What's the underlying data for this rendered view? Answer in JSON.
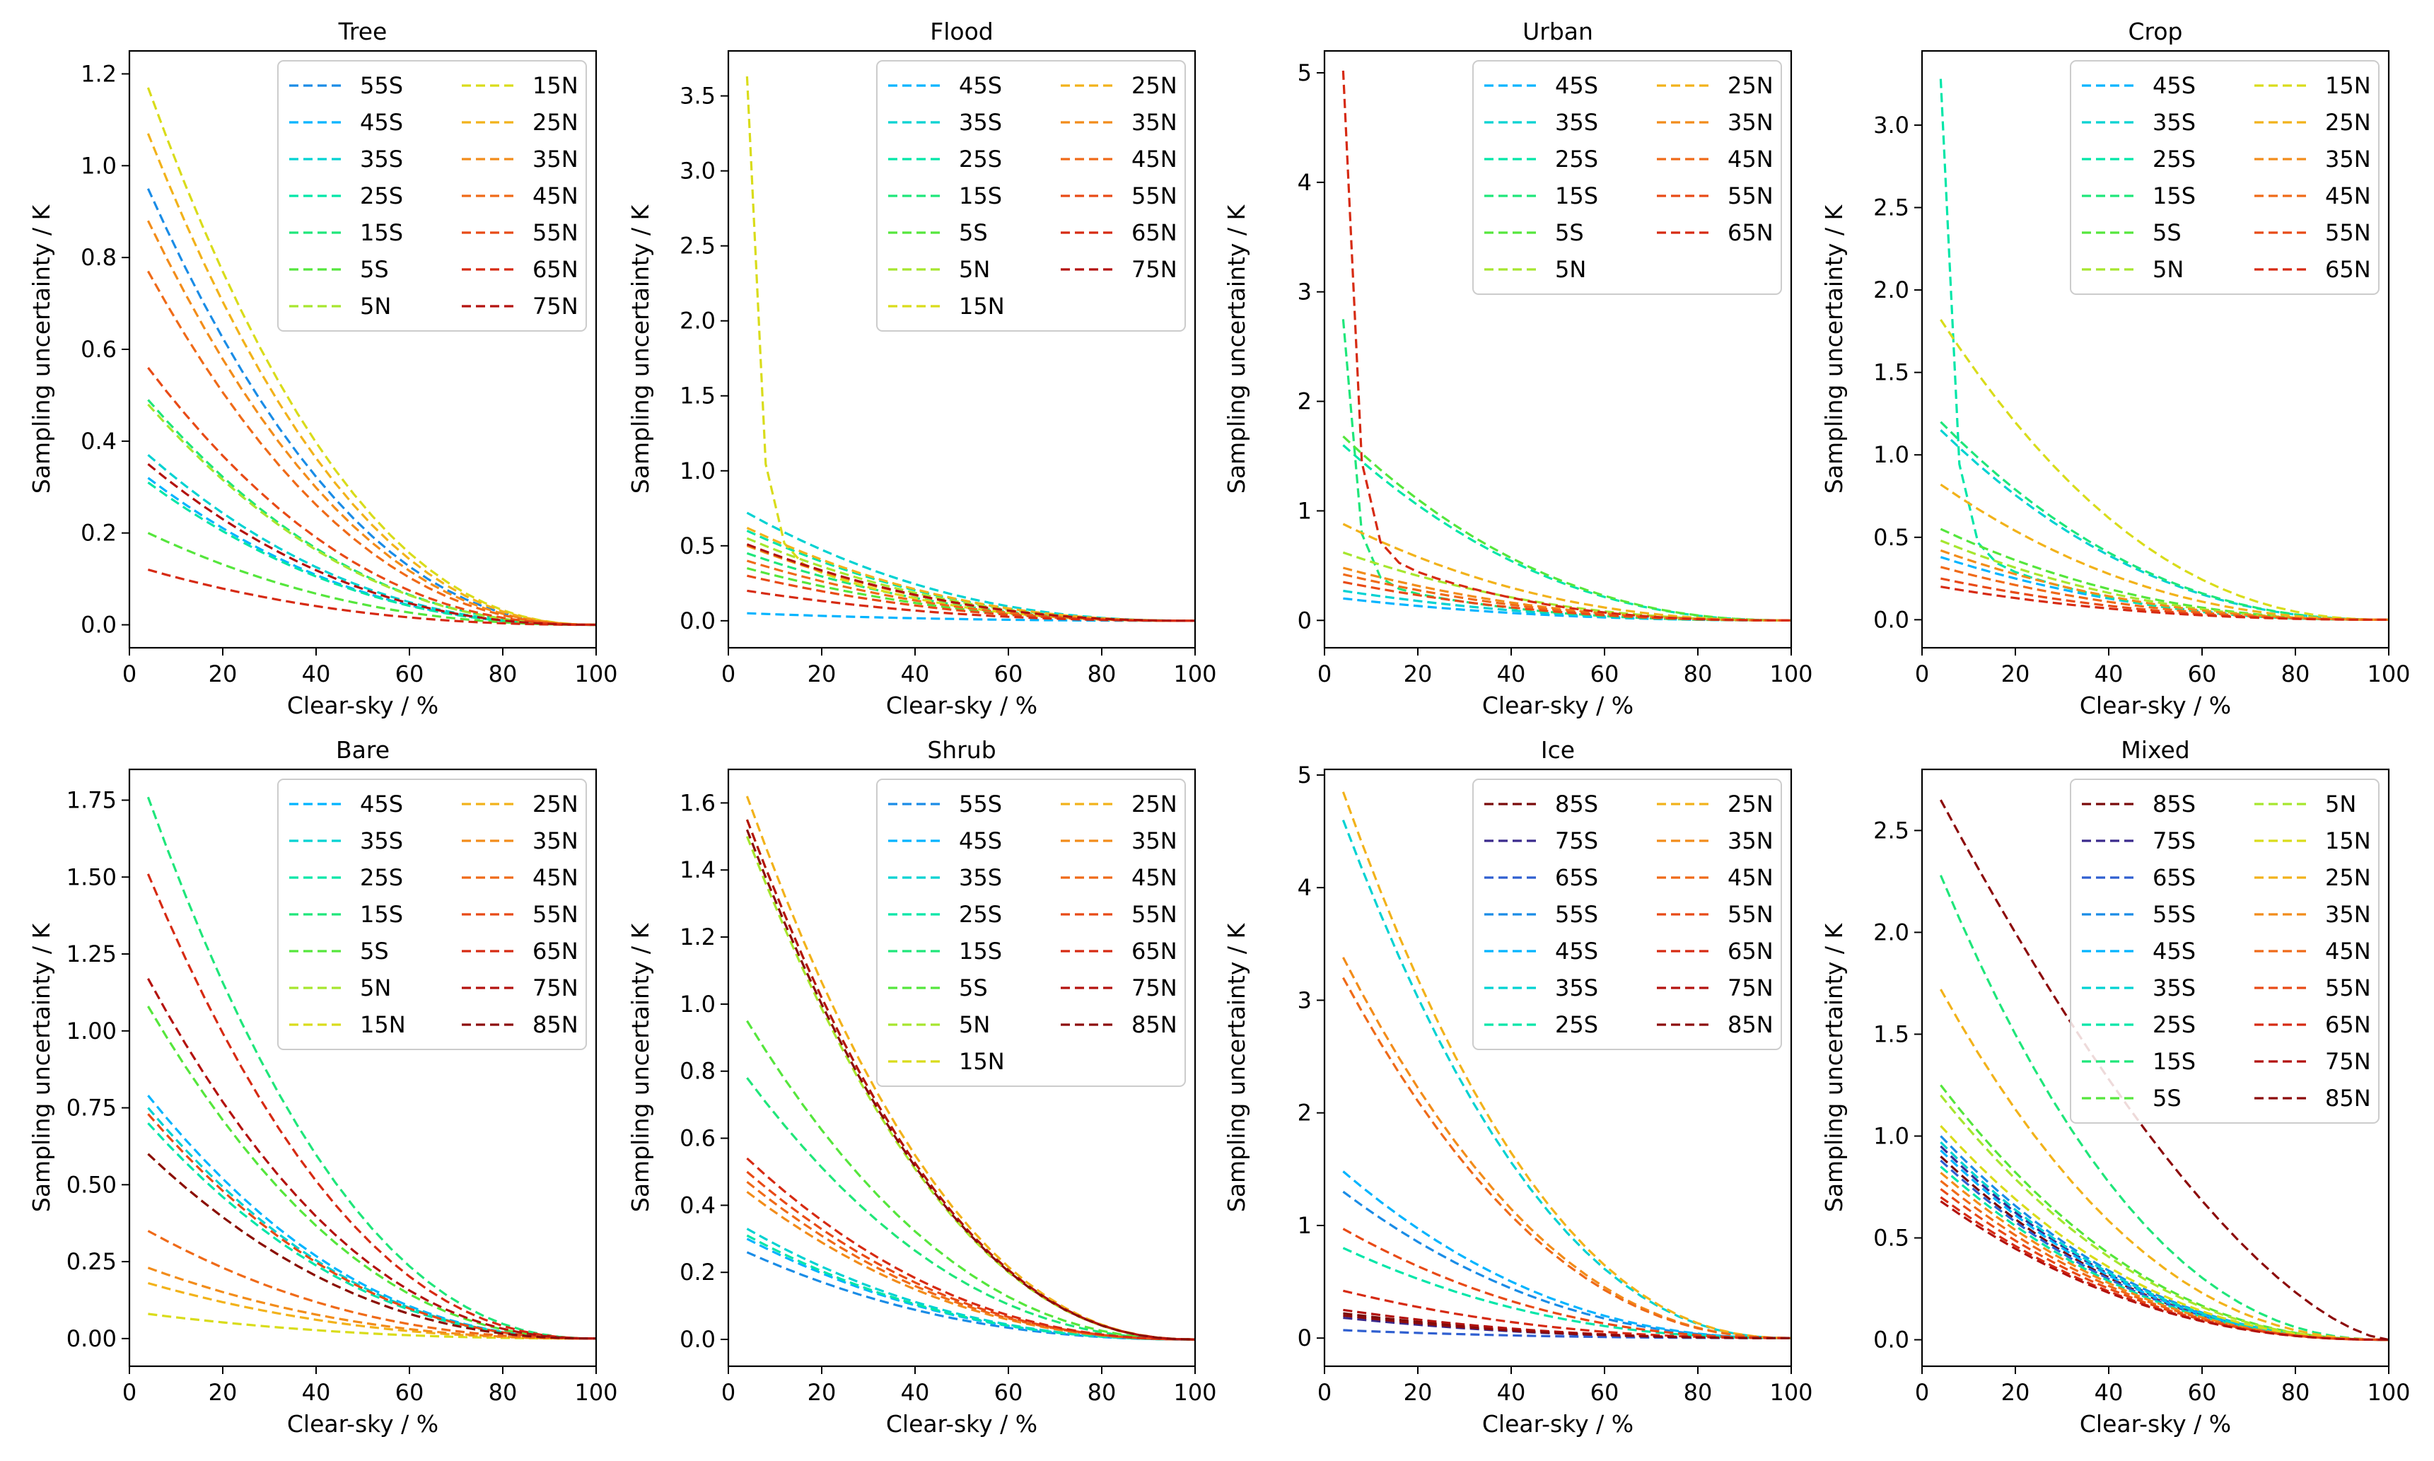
{
  "figure": {
    "xlabel": "Clear-sky / %",
    "ylabel": "Sampling uncertainty / K"
  },
  "band_colors": {
    "85S": "#7a0a0a",
    "75S": "#3a2a8c",
    "65S": "#2f5fd0",
    "55S": "#1a8ce6",
    "45S": "#00b4ff",
    "35S": "#00d2d2",
    "25S": "#00e6a8",
    "15S": "#1fe67a",
    "5S": "#55e63c",
    "5N": "#a6e62e",
    "15N": "#d9dc1a",
    "25N": "#f2b21a",
    "35N": "#f28c1a",
    "45N": "#ef6a18",
    "55N": "#e84a16",
    "65N": "#d62a12",
    "75N": "#b3120e",
    "85N": "#8c0a0a"
  },
  "chart_data": [
    {
      "type": "line",
      "title": "Tree",
      "xlabel": "Clear-sky / %",
      "ylabel": "Sampling uncertainty / K",
      "xlim": [
        0,
        100
      ],
      "ylim": [
        -0.05,
        1.25
      ],
      "xticks": [
        "0",
        "20",
        "40",
        "60",
        "80",
        "100"
      ],
      "xtick_values": [
        0,
        20,
        40,
        60,
        80,
        100
      ],
      "yticks": [
        "0.0",
        "0.2",
        "0.4",
        "0.6",
        "0.8",
        "1.0",
        "1.2"
      ],
      "ytick_values": [
        0,
        0.2,
        0.4,
        0.6,
        0.8,
        1.0,
        1.2
      ],
      "legend": {
        "columns": [
          [
            "55S",
            "45S",
            "35S",
            "25S",
            "15S",
            "5S",
            "5N"
          ],
          [
            "15N",
            "25N",
            "35N",
            "45N",
            "55N",
            "65N",
            "75N"
          ]
        ]
      },
      "series": [
        {
          "name": "55S",
          "start": 0.95
        },
        {
          "name": "45S",
          "start": 0.32
        },
        {
          "name": "35S",
          "start": 0.37
        },
        {
          "name": "25S",
          "start": 0.31
        },
        {
          "name": "15S",
          "start": 0.49
        },
        {
          "name": "5S",
          "start": 0.2
        },
        {
          "name": "5N",
          "start": 0.48
        },
        {
          "name": "15N",
          "start": 1.17
        },
        {
          "name": "25N",
          "start": 1.07
        },
        {
          "name": "35N",
          "start": 0.88
        },
        {
          "name": "45N",
          "start": 0.77
        },
        {
          "name": "55N",
          "start": 0.56
        },
        {
          "name": "65N",
          "start": 0.12
        },
        {
          "name": "75N",
          "start": 0.35
        }
      ]
    },
    {
      "type": "line",
      "title": "Flood",
      "xlabel": "Clear-sky / %",
      "ylabel": "Sampling uncertainty / K",
      "xlim": [
        0,
        100
      ],
      "ylim": [
        -0.18,
        3.8
      ],
      "xticks": [
        "0",
        "20",
        "40",
        "60",
        "80",
        "100"
      ],
      "xtick_values": [
        0,
        20,
        40,
        60,
        80,
        100
      ],
      "yticks": [
        "0.0",
        "0.5",
        "1.0",
        "1.5",
        "2.0",
        "2.5",
        "3.0",
        "3.5"
      ],
      "ytick_values": [
        0,
        0.5,
        1.0,
        1.5,
        2.0,
        2.5,
        3.0,
        3.5
      ],
      "legend": {
        "columns": [
          [
            "45S",
            "35S",
            "25S",
            "15S",
            "5S",
            "5N",
            "15N"
          ],
          [
            "25N",
            "35N",
            "45N",
            "55N",
            "65N",
            "75N"
          ]
        ]
      },
      "series": [
        {
          "name": "45S",
          "start": 0.05
        },
        {
          "name": "35S",
          "start": 0.72
        },
        {
          "name": "25S",
          "start": 0.6
        },
        {
          "name": "15S",
          "start": 0.45
        },
        {
          "name": "5S",
          "start": 0.35
        },
        {
          "name": "5N",
          "start": 0.55
        },
        {
          "name": "15N",
          "start": 3.63,
          "shape": "steep"
        },
        {
          "name": "25N",
          "start": 0.62
        },
        {
          "name": "35N",
          "start": 0.5
        },
        {
          "name": "45N",
          "start": 0.4
        },
        {
          "name": "55N",
          "start": 0.3
        },
        {
          "name": "65N",
          "start": 0.2
        },
        {
          "name": "75N",
          "start": 0.51
        }
      ]
    },
    {
      "type": "line",
      "title": "Urban",
      "xlabel": "Clear-sky / %",
      "ylabel": "Sampling uncertainty / K",
      "xlim": [
        0,
        100
      ],
      "ylim": [
        -0.25,
        5.2
      ],
      "xticks": [
        "0",
        "20",
        "40",
        "60",
        "80",
        "100"
      ],
      "xtick_values": [
        0,
        20,
        40,
        60,
        80,
        100
      ],
      "yticks": [
        "0",
        "1",
        "2",
        "3",
        "4",
        "5"
      ],
      "ytick_values": [
        0,
        1,
        2,
        3,
        4,
        5
      ],
      "legend": {
        "columns": [
          [
            "45S",
            "35S",
            "25S",
            "15S",
            "5S",
            "5N"
          ],
          [
            "25N",
            "35N",
            "45N",
            "55N",
            "65N"
          ]
        ]
      },
      "series": [
        {
          "name": "45S",
          "start": 0.2
        },
        {
          "name": "35S",
          "start": 0.27
        },
        {
          "name": "25S",
          "start": 1.6
        },
        {
          "name": "15S",
          "start": 2.75,
          "shape": "steep"
        },
        {
          "name": "5S",
          "start": 1.68
        },
        {
          "name": "5N",
          "start": 0.62
        },
        {
          "name": "25N",
          "start": 0.88
        },
        {
          "name": "35N",
          "start": 0.48
        },
        {
          "name": "45N",
          "start": 0.42
        },
        {
          "name": "55N",
          "start": 0.35
        },
        {
          "name": "65N",
          "start": 5.02,
          "shape": "steep"
        }
      ]
    },
    {
      "type": "line",
      "title": "Crop",
      "xlabel": "Clear-sky / %",
      "ylabel": "Sampling uncertainty / K",
      "xlim": [
        0,
        100
      ],
      "ylim": [
        -0.17,
        3.45
      ],
      "xticks": [
        "0",
        "20",
        "40",
        "60",
        "80",
        "100"
      ],
      "xtick_values": [
        0,
        20,
        40,
        60,
        80,
        100
      ],
      "yticks": [
        "0.0",
        "0.5",
        "1.0",
        "1.5",
        "2.0",
        "2.5",
        "3.0"
      ],
      "ytick_values": [
        0,
        0.5,
        1.0,
        1.5,
        2.0,
        2.5,
        3.0
      ],
      "legend": {
        "columns": [
          [
            "45S",
            "35S",
            "25S",
            "15S",
            "5S",
            "5N"
          ],
          [
            "15N",
            "25N",
            "35N",
            "45N",
            "55N",
            "65N"
          ]
        ]
      },
      "series": [
        {
          "name": "45S",
          "start": 0.38
        },
        {
          "name": "35S",
          "start": 1.15
        },
        {
          "name": "25S",
          "start": 3.28,
          "shape": "steep"
        },
        {
          "name": "15S",
          "start": 1.2
        },
        {
          "name": "5S",
          "start": 0.55
        },
        {
          "name": "5N",
          "start": 0.48
        },
        {
          "name": "15N",
          "start": 1.82
        },
        {
          "name": "25N",
          "start": 0.82
        },
        {
          "name": "35N",
          "start": 0.42
        },
        {
          "name": "45N",
          "start": 0.32
        },
        {
          "name": "55N",
          "start": 0.25
        },
        {
          "name": "65N",
          "start": 0.2
        }
      ]
    },
    {
      "type": "line",
      "title": "Bare",
      "xlabel": "Clear-sky / %",
      "ylabel": "Sampling uncertainty / K",
      "xlim": [
        0,
        100
      ],
      "ylim": [
        -0.09,
        1.85
      ],
      "xticks": [
        "0",
        "20",
        "40",
        "60",
        "80",
        "100"
      ],
      "xtick_values": [
        0,
        20,
        40,
        60,
        80,
        100
      ],
      "yticks": [
        "0.00",
        "0.25",
        "0.50",
        "0.75",
        "1.00",
        "1.25",
        "1.50",
        "1.75"
      ],
      "ytick_values": [
        0,
        0.25,
        0.5,
        0.75,
        1.0,
        1.25,
        1.5,
        1.75
      ],
      "legend": {
        "columns": [
          [
            "45S",
            "35S",
            "25S",
            "15S",
            "5S",
            "5N",
            "15N"
          ],
          [
            "25N",
            "35N",
            "45N",
            "55N",
            "65N",
            "75N",
            "85N"
          ]
        ]
      },
      "series": [
        {
          "name": "45S",
          "start": 0.79
        },
        {
          "name": "35S",
          "start": 0.75
        },
        {
          "name": "25S",
          "start": 0.7
        },
        {
          "name": "15S",
          "start": 1.76
        },
        {
          "name": "5S",
          "start": 1.08
        },
        {
          "name": "5N",
          "start": 0.6
        },
        {
          "name": "15N",
          "start": 0.08
        },
        {
          "name": "25N",
          "start": 0.18
        },
        {
          "name": "35N",
          "start": 0.23
        },
        {
          "name": "45N",
          "start": 0.35
        },
        {
          "name": "55N",
          "start": 0.73
        },
        {
          "name": "65N",
          "start": 1.51
        },
        {
          "name": "75N",
          "start": 1.17
        },
        {
          "name": "85N",
          "start": 0.6
        }
      ]
    },
    {
      "type": "line",
      "title": "Shrub",
      "xlabel": "Clear-sky / %",
      "ylabel": "Sampling uncertainty / K",
      "xlim": [
        0,
        100
      ],
      "ylim": [
        -0.08,
        1.7
      ],
      "xticks": [
        "0",
        "20",
        "40",
        "60",
        "80",
        "100"
      ],
      "xtick_values": [
        0,
        20,
        40,
        60,
        80,
        100
      ],
      "yticks": [
        "0.0",
        "0.2",
        "0.4",
        "0.6",
        "0.8",
        "1.0",
        "1.2",
        "1.4",
        "1.6"
      ],
      "ytick_values": [
        0,
        0.2,
        0.4,
        0.6,
        0.8,
        1.0,
        1.2,
        1.4,
        1.6
      ],
      "legend": {
        "columns": [
          [
            "55S",
            "45S",
            "35S",
            "25S",
            "15S",
            "5S",
            "5N",
            "15N"
          ],
          [
            "25N",
            "35N",
            "45N",
            "55N",
            "65N",
            "75N",
            "85N"
          ]
        ]
      },
      "series": [
        {
          "name": "55S",
          "start": 0.26
        },
        {
          "name": "45S",
          "start": 0.3
        },
        {
          "name": "35S",
          "start": 0.33
        },
        {
          "name": "25S",
          "start": 0.31
        },
        {
          "name": "15S",
          "start": 0.78
        },
        {
          "name": "5S",
          "start": 0.95
        },
        {
          "name": "5N",
          "start": 1.5
        },
        {
          "name": "15N",
          "start": 1.55
        },
        {
          "name": "25N",
          "start": 1.62
        },
        {
          "name": "35N",
          "start": 0.44
        },
        {
          "name": "45N",
          "start": 0.47
        },
        {
          "name": "55N",
          "start": 0.5
        },
        {
          "name": "65N",
          "start": 0.54
        },
        {
          "name": "75N",
          "start": 1.55
        },
        {
          "name": "85N",
          "start": 1.52
        }
      ]
    },
    {
      "type": "line",
      "title": "Ice",
      "xlabel": "Clear-sky / %",
      "ylabel": "Sampling uncertainty / K",
      "xlim": [
        0,
        100
      ],
      "ylim": [
        -0.25,
        5.05
      ],
      "xticks": [
        "0",
        "20",
        "40",
        "60",
        "80",
        "100"
      ],
      "xtick_values": [
        0,
        20,
        40,
        60,
        80,
        100
      ],
      "yticks": [
        "0",
        "1",
        "2",
        "3",
        "4",
        "5"
      ],
      "ytick_values": [
        0,
        1,
        2,
        3,
        4,
        5
      ],
      "legend": {
        "columns": [
          [
            "85S",
            "75S",
            "65S",
            "55S",
            "45S",
            "35S",
            "25S"
          ],
          [
            "25N",
            "35N",
            "45N",
            "55N",
            "65N",
            "75N",
            "85N"
          ]
        ]
      },
      "series": [
        {
          "name": "85S",
          "start": 0.22
        },
        {
          "name": "75S",
          "start": 0.18
        },
        {
          "name": "65S",
          "start": 0.07
        },
        {
          "name": "55S",
          "start": 1.3
        },
        {
          "name": "45S",
          "start": 1.48
        },
        {
          "name": "35S",
          "start": 4.6
        },
        {
          "name": "25S",
          "start": 0.8
        },
        {
          "name": "25N",
          "start": 4.85
        },
        {
          "name": "35N",
          "start": 3.38
        },
        {
          "name": "45N",
          "start": 3.2
        },
        {
          "name": "55N",
          "start": 0.97
        },
        {
          "name": "65N",
          "start": 0.42
        },
        {
          "name": "75N",
          "start": 0.25
        },
        {
          "name": "85N",
          "start": 0.2
        }
      ]
    },
    {
      "type": "line",
      "title": "Mixed",
      "xlabel": "Clear-sky / %",
      "ylabel": "Sampling uncertainty / K",
      "xlim": [
        0,
        100
      ],
      "ylim": [
        -0.13,
        2.8
      ],
      "xticks": [
        "0",
        "20",
        "40",
        "60",
        "80",
        "100"
      ],
      "xtick_values": [
        0,
        20,
        40,
        60,
        80,
        100
      ],
      "yticks": [
        "0.0",
        "0.5",
        "1.0",
        "1.5",
        "2.0",
        "2.5"
      ],
      "ytick_values": [
        0,
        0.5,
        1.0,
        1.5,
        2.0,
        2.5
      ],
      "legend": {
        "columns": [
          [
            "85S",
            "75S",
            "65S",
            "55S",
            "45S",
            "35S",
            "25S",
            "15S",
            "5S"
          ],
          [
            "5N",
            "15N",
            "25N",
            "35N",
            "45N",
            "55N",
            "65N",
            "75N",
            "85N"
          ]
        ]
      },
      "series": [
        {
          "name": "85S",
          "start": 0.9
        },
        {
          "name": "75S",
          "start": 0.95
        },
        {
          "name": "65S",
          "start": 0.88
        },
        {
          "name": "55S",
          "start": 1.0
        },
        {
          "name": "45S",
          "start": 0.93
        },
        {
          "name": "35S",
          "start": 0.97
        },
        {
          "name": "25S",
          "start": 0.85
        },
        {
          "name": "15S",
          "start": 2.28
        },
        {
          "name": "5S",
          "start": 1.25
        },
        {
          "name": "5N",
          "start": 1.2
        },
        {
          "name": "15N",
          "start": 1.05
        },
        {
          "name": "25N",
          "start": 1.72
        },
        {
          "name": "35N",
          "start": 0.82
        },
        {
          "name": "45N",
          "start": 0.78
        },
        {
          "name": "55N",
          "start": 0.74
        },
        {
          "name": "65N",
          "start": 0.7
        },
        {
          "name": "75N",
          "start": 0.68
        },
        {
          "name": "85N",
          "start": 2.65,
          "shape": "slow"
        }
      ]
    }
  ]
}
